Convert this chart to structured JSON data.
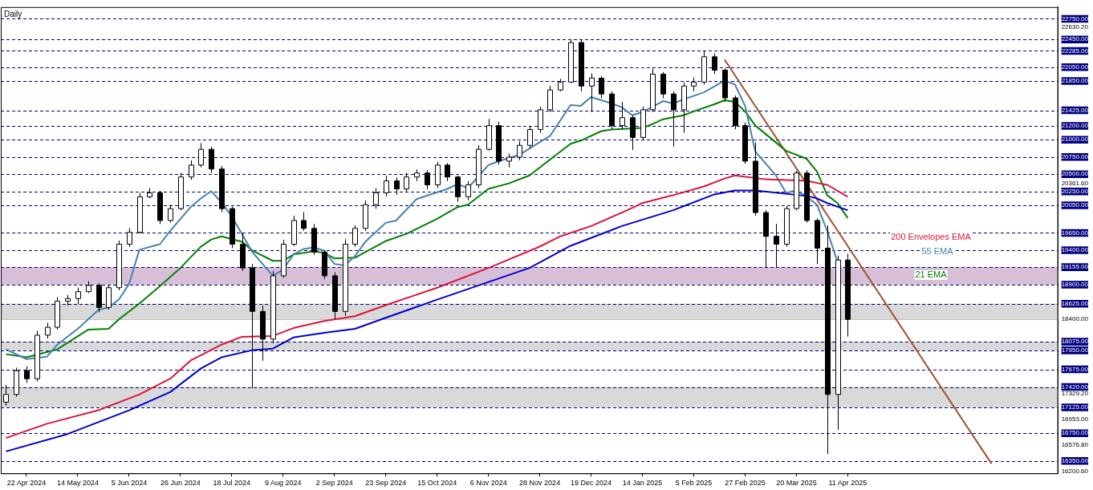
{
  "chart_data": {
    "type": "candlestick",
    "title": "Daily",
    "categories": [
      null,
      null,
      "22 Apr 2024",
      null,
      null,
      null,
      null,
      "14 May 2024",
      null,
      null,
      null,
      null,
      "5 Jun 2024",
      null,
      null,
      null,
      null,
      "26 Jun 2024",
      null,
      null,
      null,
      null,
      "18 Jul 2024",
      null,
      null,
      null,
      null,
      "9 Aug 2024",
      null,
      null,
      null,
      null,
      "2 Sep 2024",
      null,
      null,
      null,
      null,
      "23 Sep 2024",
      null,
      null,
      null,
      null,
      "15 Oct 2024",
      null,
      null,
      null,
      null,
      "6 Nov 2024",
      null,
      null,
      null,
      null,
      "28 Nov 2024",
      null,
      null,
      null,
      null,
      "19 Dec 2024",
      null,
      null,
      null,
      null,
      "14 Jan 2025",
      null,
      null,
      null,
      null,
      "5 Feb 2025",
      null,
      null,
      null,
      null,
      "27 Feb 2025",
      null,
      null,
      null,
      null,
      "20 Mar 2025",
      null,
      null,
      null,
      null,
      "11 Apr 2025",
      null,
      null,
      null,
      null,
      null,
      null,
      null,
      null,
      null,
      null,
      null,
      null,
      null,
      null,
      null,
      null,
      null,
      null,
      null,
      null
    ],
    "ohlc": [
      [
        17200,
        17450,
        17150,
        17312
      ],
      [
        17312,
        17700,
        17280,
        17655
      ],
      [
        17655,
        17720,
        17480,
        17540
      ],
      [
        17540,
        18230,
        17500,
        18170
      ],
      [
        18170,
        18350,
        18120,
        18284
      ],
      [
        18284,
        18720,
        18250,
        18662
      ],
      [
        18662,
        18750,
        18600,
        18700
      ],
      [
        18700,
        18860,
        18620,
        18800
      ],
      [
        18800,
        18950,
        18780,
        18891
      ],
      [
        18891,
        18920,
        18500,
        18571
      ],
      [
        18571,
        18900,
        18540,
        18857
      ],
      [
        18857,
        19540,
        18820,
        19487
      ],
      [
        19487,
        19720,
        19450,
        19659
      ],
      [
        19659,
        20230,
        19640,
        20174
      ],
      [
        20174,
        20300,
        20150,
        20231
      ],
      [
        20231,
        20260,
        19780,
        19830
      ],
      [
        19830,
        20060,
        19800,
        20002
      ],
      [
        20002,
        20520,
        19980,
        20460
      ],
      [
        20460,
        20700,
        20420,
        20632
      ],
      [
        20632,
        20950,
        20600,
        20861
      ],
      [
        20861,
        20900,
        20520,
        20575
      ],
      [
        20575,
        20620,
        19950,
        20002
      ],
      [
        20002,
        20030,
        19430,
        19487
      ],
      [
        19487,
        19650,
        19100,
        19143
      ],
      [
        19143,
        19200,
        17400,
        18514
      ],
      [
        18514,
        18600,
        17800,
        18113
      ],
      [
        18113,
        19100,
        18050,
        19029
      ],
      [
        19029,
        19550,
        19000,
        19487
      ],
      [
        19487,
        19900,
        19460,
        19830
      ],
      [
        19830,
        19950,
        19680,
        19716
      ],
      [
        19716,
        19780,
        19330,
        19372
      ],
      [
        19372,
        19400,
        18980,
        19029
      ],
      [
        19029,
        19080,
        18400,
        18514
      ],
      [
        18514,
        19560,
        18450,
        19487
      ],
      [
        19487,
        19760,
        19450,
        19716
      ],
      [
        19716,
        20120,
        19680,
        20059
      ],
      [
        20059,
        20300,
        20000,
        20231
      ],
      [
        20231,
        20480,
        20180,
        20403
      ],
      [
        20403,
        20450,
        20200,
        20288
      ],
      [
        20288,
        20520,
        20250,
        20460
      ],
      [
        20460,
        20570,
        20400,
        20517
      ],
      [
        20517,
        20560,
        20280,
        20346
      ],
      [
        20346,
        20680,
        20300,
        20632
      ],
      [
        20632,
        20660,
        20400,
        20460
      ],
      [
        20460,
        20480,
        20100,
        20174
      ],
      [
        20174,
        20400,
        20120,
        20346
      ],
      [
        20346,
        20920,
        20300,
        20861
      ],
      [
        20861,
        21300,
        20840,
        21204
      ],
      [
        21204,
        21260,
        20640,
        20689
      ],
      [
        20689,
        20800,
        20600,
        20746
      ],
      [
        20746,
        20980,
        20700,
        20918
      ],
      [
        20918,
        21200,
        20880,
        21147
      ],
      [
        21147,
        21480,
        21100,
        21433
      ],
      [
        21433,
        21780,
        21400,
        21720
      ],
      [
        21720,
        21880,
        21700,
        21834
      ],
      [
        21834,
        22450,
        21820,
        22406
      ],
      [
        22406,
        22450,
        21700,
        21777
      ],
      [
        21777,
        21960,
        21400,
        21891
      ],
      [
        21891,
        21920,
        21600,
        21662
      ],
      [
        21662,
        21700,
        21150,
        21204
      ],
      [
        21204,
        21550,
        21150,
        21319
      ],
      [
        21319,
        21350,
        20850,
        21033
      ],
      [
        21033,
        21480,
        21000,
        21433
      ],
      [
        21433,
        22030,
        21400,
        21949
      ],
      [
        21949,
        21980,
        21600,
        21662
      ],
      [
        21662,
        21700,
        20900,
        21433
      ],
      [
        21433,
        21830,
        21100,
        21777
      ],
      [
        21777,
        21900,
        21700,
        21834
      ],
      [
        21834,
        22290,
        21800,
        22200
      ],
      [
        22200,
        22250,
        21950,
        22006
      ],
      [
        22006,
        22030,
        21550,
        21605
      ],
      [
        21605,
        21640,
        21150,
        21204
      ],
      [
        21204,
        21250,
        20650,
        20689
      ],
      [
        20689,
        20960,
        19900,
        19945
      ],
      [
        19945,
        19980,
        19150,
        19601
      ],
      [
        19601,
        19780,
        19150,
        19487
      ],
      [
        19487,
        20040,
        19450,
        20002
      ],
      [
        20002,
        20550,
        19980,
        20517
      ],
      [
        20517,
        20560,
        19800,
        19830
      ],
      [
        19830,
        19860,
        19200,
        19430
      ],
      [
        19430,
        19760,
        16450,
        17312
      ],
      [
        17312,
        19320,
        16800,
        19258
      ],
      [
        19258,
        19350,
        18150,
        18399
      ],
      null,
      null,
      null,
      null,
      null,
      null,
      null,
      null,
      null,
      null,
      null,
      null,
      null,
      null,
      null,
      null,
      null,
      null,
      null,
      null
    ],
    "ylim": [
      16170,
      22920
    ],
    "yticks": [
      {
        "value": 22750,
        "label": "22750.00"
      },
      {
        "value": 22630.2,
        "label": "22630.20"
      },
      {
        "value": 22450,
        "label": "22450.00"
      },
      {
        "value": 22285,
        "label": "22285.00"
      },
      {
        "value": 22050,
        "label": "22050.00"
      },
      {
        "value": 21850,
        "label": "21850.00"
      },
      {
        "value": 21425,
        "label": "21425.00"
      },
      {
        "value": 21200,
        "label": "21200.00"
      },
      {
        "value": 21000,
        "label": "21000.00"
      },
      {
        "value": 20750,
        "label": "20750.00"
      },
      {
        "value": 20500,
        "label": "20500.00"
      },
      {
        "value": 20361.6,
        "label": "20361.60"
      },
      {
        "value": 20250,
        "label": "20250.00"
      },
      {
        "value": 20050,
        "label": "20050.00"
      },
      {
        "value": 19650,
        "label": "19650.00"
      },
      {
        "value": 19400,
        "label": "19400.00"
      },
      {
        "value": 19155,
        "label": "19155.00"
      },
      {
        "value": 18900,
        "label": "18900.00"
      },
      {
        "value": 18625,
        "label": "18625.00"
      },
      {
        "value": 18400,
        "label": "18400.00"
      },
      {
        "value": 18075,
        "label": "18075.00"
      },
      {
        "value": 17950,
        "label": "17950.00"
      },
      {
        "value": 17675,
        "label": "17675.00"
      },
      {
        "value": 17420,
        "label": "17420.00"
      },
      {
        "value": 17329.2,
        "label": "17329.20"
      },
      {
        "value": 17125,
        "label": "17125.00"
      },
      {
        "value": 16953,
        "label": "16953.00"
      },
      {
        "value": 16750,
        "label": "16750.00"
      },
      {
        "value": 16576.8,
        "label": "16576.80"
      },
      {
        "value": 16350,
        "label": "16350.00"
      },
      {
        "value": 16200.6,
        "label": "16200.60"
      }
    ],
    "grid": false,
    "legend": false,
    "series": [
      {
        "name": "200 Envelopes EMA",
        "type": "line",
        "color": "#dc143c",
        "values": [
          16682,
          null,
          null,
          null,
          16888,
          null,
          null,
          null,
          null,
          17083,
          null,
          null,
          null,
          17312,
          null,
          null,
          17540,
          null,
          17804,
          null,
          null,
          18033,
          null,
          18147,
          null,
          null,
          18159,
          null,
          18273,
          null,
          null,
          18376,
          null,
          null,
          18445,
          null,
          null,
          18605,
          null,
          null,
          null,
          null,
          18857,
          null,
          null,
          null,
          null,
          19143,
          null,
          null,
          null,
          null,
          19452,
          null,
          19601,
          null,
          null,
          19750,
          null,
          null,
          19945,
          null,
          20082,
          null,
          null,
          20197,
          null,
          null,
          20323,
          null,
          20437,
          20483,
          null,
          null,
          20426,
          null,
          null,
          null,
          20403,
          null,
          20346,
          null,
          20174,
          null,
          null,
          null,
          null,
          null,
          null,
          null,
          null,
          null,
          null,
          null,
          null,
          null,
          null,
          null,
          null,
          null,
          null,
          null,
          null
        ]
      },
      {
        "type": "line",
        "color": "#0000cd",
        "values": [
          16487,
          null,
          null,
          null,
          null,
          null,
          16739,
          null,
          null,
          null,
          null,
          null,
          17083,
          null,
          null,
          null,
          17346,
          null,
          null,
          17689,
          null,
          17849,
          null,
          null,
          17953,
          null,
          17976,
          null,
          18136,
          null,
          null,
          18205,
          null,
          null,
          18262,
          null,
          null,
          18422,
          null,
          null,
          null,
          null,
          18685,
          null,
          null,
          null,
          null,
          null,
          null,
          null,
          null,
          19143,
          null,
          null,
          null,
          19464,
          null,
          null,
          null,
          null,
          19750,
          null,
          null,
          null,
          null,
          19979,
          null,
          null,
          null,
          20208,
          null,
          20265,
          null,
          20265,
          null,
          null,
          null,
          null,
          20185,
          20151,
          20082,
          null,
          19979,
          null,
          null,
          null,
          null,
          null,
          null,
          null,
          null,
          null,
          null,
          null,
          null,
          null,
          null,
          null,
          null,
          null,
          null,
          null,
          null
        ]
      },
      {
        "name": "55 EMA",
        "type": "line",
        "color": "#4682b4",
        "values": [
          17964,
          null,
          17824,
          null,
          17860,
          18033,
          null,
          18262,
          18399,
          18536,
          18571,
          18685,
          18914,
          19407,
          null,
          19487,
          19681,
          null,
          20025,
          20151,
          20254,
          20094,
          19888,
          19636,
          19372,
          null,
          19029,
          19120,
          19338,
          19418,
          19441,
          19395,
          19201,
          19178,
          19315,
          19521,
          null,
          19796,
          19830,
          null,
          20140,
          null,
          null,
          20288,
          20357,
          20300,
          null,
          20632,
          20689,
          null,
          20781,
          null,
          null,
          21055,
          null,
          21502,
          21491,
          21617,
          null,
          21525,
          21468,
          21353,
          21399,
          null,
          21559,
          21525,
          21582,
          null,
          21685,
          null,
          21857,
          21800,
          21491,
          20826,
          null,
          20483,
          20231,
          20265,
          20174,
          20059,
          19681,
          19235,
          null,
          null,
          null,
          null,
          null,
          null,
          null,
          null,
          null,
          null,
          null,
          null,
          null,
          null,
          null,
          null,
          null,
          null,
          null,
          null,
          null
        ]
      },
      {
        "name": "21 EMA",
        "type": "line",
        "color": "#008000",
        "values": [
          17895,
          null,
          17849,
          null,
          null,
          17964,
          null,
          null,
          18250,
          null,
          18262,
          18399,
          null,
          18628,
          null,
          18880,
          null,
          19143,
          null,
          19453,
          19555,
          19601,
          null,
          19521,
          19395,
          null,
          19246,
          19246,
          19338,
          null,
          19384,
          19361,
          19281,
          null,
          19292,
          19372,
          null,
          19533,
          null,
          19636,
          null,
          null,
          19853,
          null,
          20025,
          20059,
          null,
          20288,
          null,
          20368,
          null,
          20483,
          null,
          20712,
          null,
          20941,
          20987,
          null,
          21124,
          21147,
          null,
          null,
          21170,
          21227,
          21296,
          null,
          21353,
          21410,
          null,
          21513,
          21571,
          21548,
          21410,
          21204,
          null,
          null,
          20838,
          null,
          20723,
          20540,
          20197,
          20082,
          19865,
          null,
          null,
          null,
          null,
          null,
          null,
          null,
          null,
          null,
          null,
          null,
          null,
          null,
          null,
          null,
          null,
          null,
          null,
          null,
          null
        ]
      },
      {
        "type": "line",
        "color": "#a0522d",
        "values": [
          null,
          null,
          null,
          null,
          null,
          null,
          null,
          null,
          null,
          null,
          null,
          null,
          null,
          null,
          null,
          null,
          null,
          null,
          null,
          null,
          null,
          null,
          null,
          null,
          null,
          null,
          null,
          null,
          null,
          null,
          null,
          null,
          null,
          null,
          null,
          null,
          null,
          null,
          null,
          null,
          null,
          null,
          null,
          null,
          null,
          null,
          null,
          null,
          null,
          null,
          null,
          null,
          null,
          null,
          null,
          null,
          null,
          null,
          null,
          null,
          null,
          null,
          null,
          null,
          null,
          null,
          null,
          null,
          null,
          null,
          22160,
          null,
          null,
          null,
          null,
          null,
          null,
          null,
          null,
          null,
          null,
          null,
          null,
          null,
          null,
          null,
          null,
          null,
          null,
          null,
          null,
          null,
          null,
          null,
          null,
          null,
          16310,
          null,
          null,
          null,
          null,
          null,
          null
        ]
      }
    ],
    "ref_lines": [
      {
        "axis": "y",
        "value": 22750
      },
      {
        "axis": "y",
        "value": 22450
      },
      {
        "axis": "y",
        "value": 22285
      },
      {
        "axis": "y",
        "value": 22050
      },
      {
        "axis": "y",
        "value": 21850
      },
      {
        "axis": "y",
        "value": 21425
      },
      {
        "axis": "y",
        "value": 21200
      },
      {
        "axis": "y",
        "value": 21000
      },
      {
        "axis": "y",
        "value": 20750
      },
      {
        "axis": "y",
        "value": 20500
      },
      {
        "axis": "y",
        "value": 20250
      },
      {
        "axis": "y",
        "value": 20050
      },
      {
        "axis": "y",
        "value": 19650
      },
      {
        "axis": "y",
        "value": 19400
      },
      {
        "axis": "y",
        "value": 19155
      },
      {
        "axis": "y",
        "value": 18900
      },
      {
        "axis": "y",
        "value": 18625
      },
      {
        "axis": "y",
        "value": 18400,
        "color": "#c0c0c0",
        "line_style": "solid"
      },
      {
        "axis": "y",
        "value": 18075
      },
      {
        "axis": "y",
        "value": 17950
      },
      {
        "axis": "y",
        "value": 17675
      },
      {
        "axis": "y",
        "value": 17420
      },
      {
        "axis": "y",
        "value": 17125
      },
      {
        "axis": "y",
        "value": 16750
      },
      {
        "axis": "y",
        "value": 16350
      }
    ],
    "bands": [
      {
        "axis": "y",
        "from": 18400,
        "to": 18625,
        "color": "#d9d9d9"
      },
      {
        "axis": "y",
        "from": 17950,
        "to": 18075,
        "color": "#d9d9d9"
      },
      {
        "axis": "y",
        "from": 17125,
        "to": 17420,
        "color": "#d9d9d9"
      },
      {
        "axis": "y",
        "from": 18900,
        "to": 19155,
        "color": "#d8bfd8"
      }
    ]
  }
}
